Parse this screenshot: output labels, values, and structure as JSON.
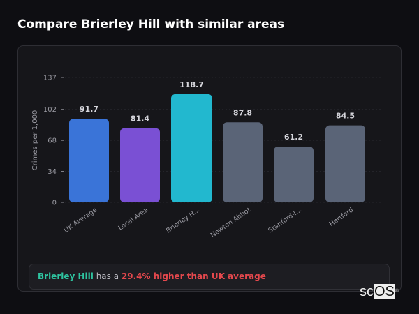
{
  "title": "Compare Brierley Hill with similar areas",
  "chart_data": {
    "type": "bar",
    "categories": [
      "UK Average",
      "Local Area",
      "Brierley H...",
      "Newton Abbot",
      "Stanford-l...",
      "Hertford"
    ],
    "values": [
      91.7,
      81.4,
      118.7,
      87.8,
      61.2,
      84.5
    ],
    "value_labels": [
      "91.7",
      "81.4",
      "118.7",
      "87.8",
      "61.2",
      "84.5"
    ],
    "colors": [
      "#3a74d8",
      "#7a50d4",
      "#22b8cf",
      "#5a6477",
      "#5a6477",
      "#5a6477"
    ],
    "ylabel": "Crimes per 1,000",
    "xlabel": "",
    "yticks": [
      "0",
      "34",
      "68",
      "102",
      "137"
    ],
    "ylim": [
      0,
      137
    ],
    "grid": true
  },
  "summary": {
    "place": "Brierley Hill",
    "connector": " has a ",
    "difference": "29.4% higher than UK average"
  },
  "logo": {
    "prefix": "sc",
    "highlight": "OS",
    "mark": "®"
  }
}
